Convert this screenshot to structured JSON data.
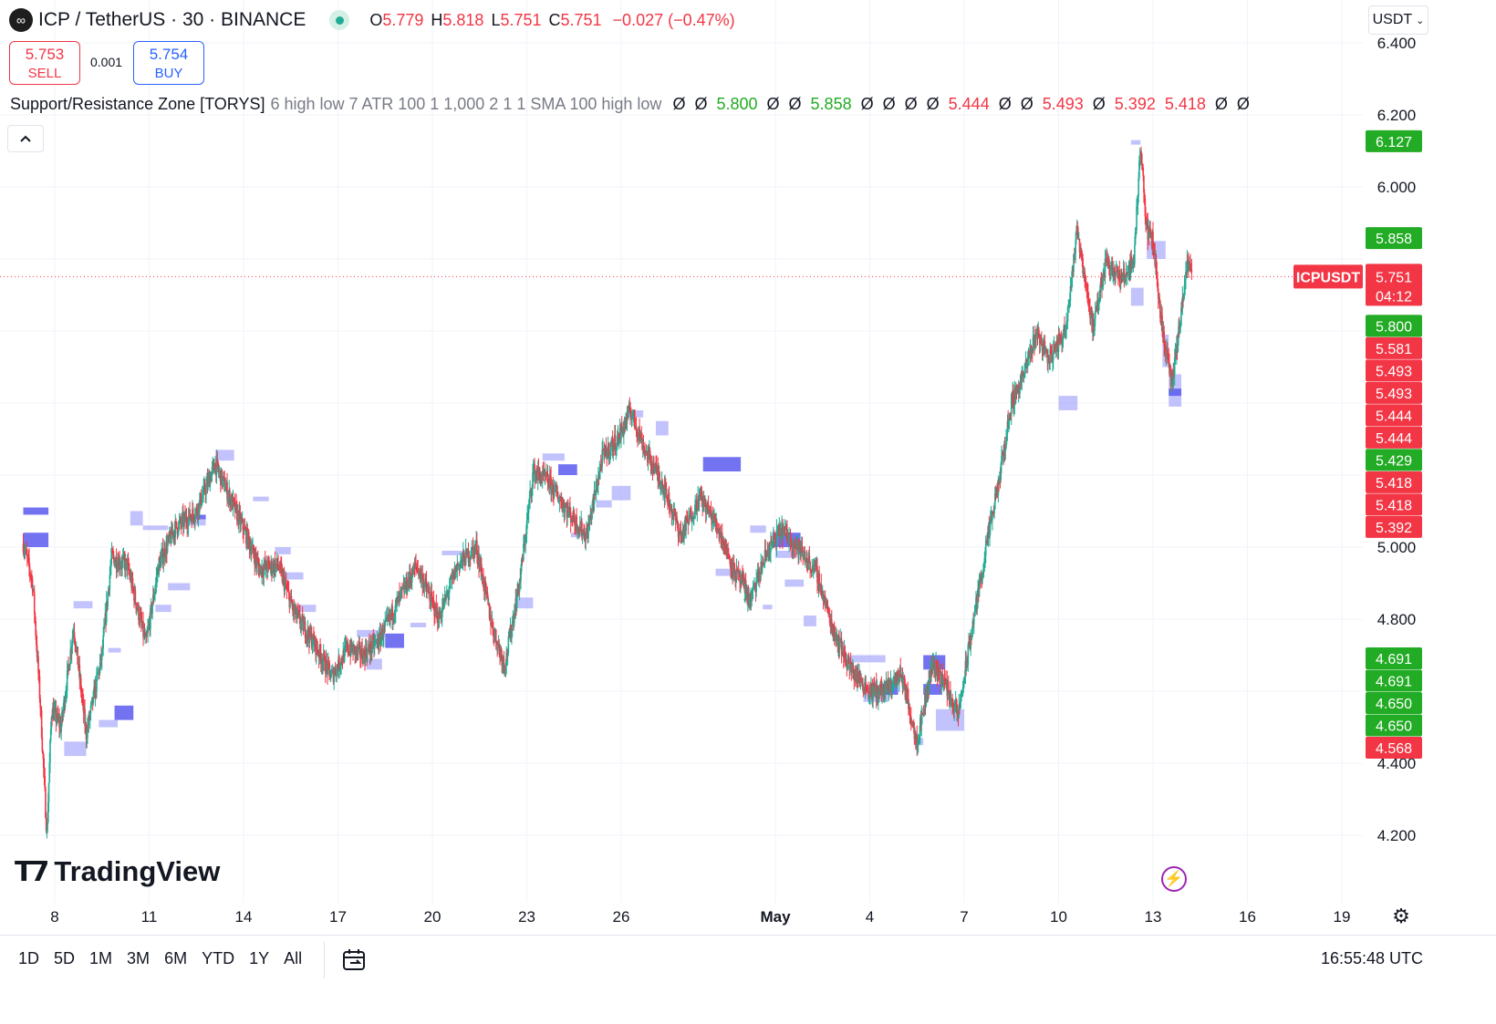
{
  "header": {
    "symbol_title": "ICP / TetherUS · 30 · BINANCE",
    "symbol_icon": "infinity-logo",
    "ohlc": {
      "o_label": "O",
      "o_value": "5.779",
      "h_label": "H",
      "h_value": "5.818",
      "l_label": "L",
      "l_value": "5.751",
      "c_label": "C",
      "c_value": "5.751",
      "change": "−0.027 (−0.47%)"
    }
  },
  "trade": {
    "sell_price": "5.753",
    "sell_label": "SELL",
    "spread": "0.001",
    "buy_price": "5.754",
    "buy_label": "BUY"
  },
  "indicator": {
    "name": "Support/Resistance Zone [TORYS]",
    "params": "6 high low 7 ATR 100 1 1,000 2 1 1 SMA 100 high low",
    "values": [
      {
        "text": "Ø",
        "color": "#131722"
      },
      {
        "text": "Ø",
        "color": "#131722"
      },
      {
        "text": "5.800",
        "color": "#22ab24"
      },
      {
        "text": "Ø",
        "color": "#131722"
      },
      {
        "text": "Ø",
        "color": "#131722"
      },
      {
        "text": "5.858",
        "color": "#22ab24"
      },
      {
        "text": "Ø",
        "color": "#131722"
      },
      {
        "text": "Ø",
        "color": "#131722"
      },
      {
        "text": "Ø",
        "color": "#131722"
      },
      {
        "text": "Ø",
        "color": "#131722"
      },
      {
        "text": "5.444",
        "color": "#f23645"
      },
      {
        "text": "Ø",
        "color": "#131722"
      },
      {
        "text": "Ø",
        "color": "#131722"
      },
      {
        "text": "5.493",
        "color": "#f23645"
      },
      {
        "text": "Ø",
        "color": "#131722"
      },
      {
        "text": "5.392",
        "color": "#f23645"
      },
      {
        "text": "5.418",
        "color": "#f23645"
      },
      {
        "text": "Ø",
        "color": "#131722"
      },
      {
        "text": "Ø",
        "color": "#131722"
      }
    ]
  },
  "currency": "USDT",
  "branding": "TradingView",
  "colors": {
    "up": "#22ab94",
    "down": "#f23645",
    "zone_light": "#b3b3fb",
    "zone_dark": "#5a5af0",
    "label_green": "#22ab24",
    "label_red": "#f23645"
  },
  "chart_data": {
    "type": "candlestick",
    "symbol_label": "ICPUSDT",
    "last_price": "5.751",
    "countdown": "04:12",
    "y_ticks": [
      "4.200",
      "4.400",
      "4.800",
      "5.000",
      "6.000",
      "6.200",
      "6.400"
    ],
    "x_ticks": [
      "8",
      "11",
      "14",
      "17",
      "20",
      "23",
      "26",
      "May",
      "4",
      "7",
      "10",
      "13",
      "16",
      "19"
    ],
    "axis_labels": [
      {
        "text": "6.127",
        "v": 6.127,
        "kind": "green"
      },
      {
        "text": "5.858",
        "v": 5.858,
        "kind": "green"
      },
      {
        "text": "5.800",
        "v": 5.8,
        "kind": "green"
      },
      {
        "text": "5.800",
        "v": 5.8,
        "kind": "green"
      },
      {
        "text": "5.581",
        "v": 5.581,
        "kind": "red"
      },
      {
        "text": "5.493",
        "v": 5.493,
        "kind": "red"
      },
      {
        "text": "5.493",
        "v": 5.493,
        "kind": "red"
      },
      {
        "text": "5.444",
        "v": 5.444,
        "kind": "red"
      },
      {
        "text": "5.444",
        "v": 5.444,
        "kind": "red"
      },
      {
        "text": "5.429",
        "v": 5.429,
        "kind": "green"
      },
      {
        "text": "5.418",
        "v": 5.418,
        "kind": "red"
      },
      {
        "text": "5.418",
        "v": 5.418,
        "kind": "red"
      },
      {
        "text": "5.392",
        "v": 5.392,
        "kind": "red"
      },
      {
        "text": "4.691",
        "v": 4.691,
        "kind": "green"
      },
      {
        "text": "4.691",
        "v": 4.691,
        "kind": "green"
      },
      {
        "text": "4.650",
        "v": 4.65,
        "kind": "green"
      },
      {
        "text": "4.650",
        "v": 4.65,
        "kind": "green"
      },
      {
        "text": "4.568",
        "v": 4.568,
        "kind": "red"
      }
    ],
    "path": [
      {
        "day": 7.0,
        "v": 5.01
      },
      {
        "day": 7.3,
        "v": 4.9
      },
      {
        "day": 7.55,
        "v": 4.55
      },
      {
        "day": 7.75,
        "v": 4.2
      },
      {
        "day": 7.9,
        "v": 4.55
      },
      {
        "day": 8.2,
        "v": 4.5
      },
      {
        "day": 8.6,
        "v": 4.78
      },
      {
        "day": 9.0,
        "v": 4.48
      },
      {
        "day": 9.5,
        "v": 4.7
      },
      {
        "day": 9.8,
        "v": 4.97
      },
      {
        "day": 10.3,
        "v": 4.95
      },
      {
        "day": 10.9,
        "v": 4.73
      },
      {
        "day": 11.3,
        "v": 4.95
      },
      {
        "day": 11.8,
        "v": 5.05
      },
      {
        "day": 12.5,
        "v": 5.1
      },
      {
        "day": 13.1,
        "v": 5.23
      },
      {
        "day": 13.6,
        "v": 5.13
      },
      {
        "day": 14.1,
        "v": 5.03
      },
      {
        "day": 14.5,
        "v": 4.94
      },
      {
        "day": 15.1,
        "v": 4.95
      },
      {
        "day": 15.6,
        "v": 4.82
      },
      {
        "day": 16.2,
        "v": 4.74
      },
      {
        "day": 16.8,
        "v": 4.64
      },
      {
        "day": 17.3,
        "v": 4.72
      },
      {
        "day": 17.8,
        "v": 4.7
      },
      {
        "day": 18.3,
        "v": 4.74
      },
      {
        "day": 18.8,
        "v": 4.83
      },
      {
        "day": 19.5,
        "v": 4.95
      },
      {
        "day": 20.2,
        "v": 4.8
      },
      {
        "day": 20.8,
        "v": 4.95
      },
      {
        "day": 21.4,
        "v": 5.0
      },
      {
        "day": 21.9,
        "v": 4.78
      },
      {
        "day": 22.3,
        "v": 4.67
      },
      {
        "day": 22.8,
        "v": 4.92
      },
      {
        "day": 23.2,
        "v": 5.21
      },
      {
        "day": 23.7,
        "v": 5.18
      },
      {
        "day": 24.3,
        "v": 5.1
      },
      {
        "day": 24.9,
        "v": 5.03
      },
      {
        "day": 25.4,
        "v": 5.25
      },
      {
        "day": 25.9,
        "v": 5.3
      },
      {
        "day": 26.3,
        "v": 5.38
      },
      {
        "day": 26.8,
        "v": 5.26
      },
      {
        "day": 27.3,
        "v": 5.18
      },
      {
        "day": 27.9,
        "v": 5.03
      },
      {
        "day": 28.5,
        "v": 5.14
      },
      {
        "day": 29.1,
        "v": 5.05
      },
      {
        "day": 29.6,
        "v": 4.93
      },
      {
        "day": 30.2,
        "v": 4.85
      },
      {
        "day": 30.7,
        "v": 4.98
      },
      {
        "day": 31.2,
        "v": 5.05
      },
      {
        "day": 31.7,
        "v": 5.0
      },
      {
        "day": 32.3,
        "v": 4.93
      },
      {
        "day": 32.8,
        "v": 4.78
      },
      {
        "day": 33.4,
        "v": 4.66
      },
      {
        "day": 34.0,
        "v": 4.6
      },
      {
        "day": 34.5,
        "v": 4.6
      },
      {
        "day": 35.0,
        "v": 4.65
      },
      {
        "day": 35.5,
        "v": 4.46
      },
      {
        "day": 36.0,
        "v": 4.68
      },
      {
        "day": 36.4,
        "v": 4.62
      },
      {
        "day": 36.8,
        "v": 4.53
      },
      {
        "day": 37.3,
        "v": 4.8
      },
      {
        "day": 37.7,
        "v": 5.0
      },
      {
        "day": 38.1,
        "v": 5.18
      },
      {
        "day": 38.5,
        "v": 5.4
      },
      {
        "day": 38.9,
        "v": 5.48
      },
      {
        "day": 39.3,
        "v": 5.6
      },
      {
        "day": 39.7,
        "v": 5.52
      },
      {
        "day": 40.2,
        "v": 5.6
      },
      {
        "day": 40.6,
        "v": 5.88
      },
      {
        "day": 41.1,
        "v": 5.6
      },
      {
        "day": 41.5,
        "v": 5.8
      },
      {
        "day": 42.0,
        "v": 5.74
      },
      {
        "day": 42.4,
        "v": 5.8
      },
      {
        "day": 42.6,
        "v": 6.12
      },
      {
        "day": 42.8,
        "v": 5.88
      },
      {
        "day": 43.0,
        "v": 5.85
      },
      {
        "day": 43.3,
        "v": 5.6
      },
      {
        "day": 43.6,
        "v": 5.45
      },
      {
        "day": 43.9,
        "v": 5.65
      },
      {
        "day": 44.1,
        "v": 5.79
      },
      {
        "day": 44.25,
        "v": 5.751
      }
    ],
    "zones": [
      {
        "d0": 7.0,
        "d1": 7.8,
        "v0": 5.09,
        "v1": 5.11,
        "dark": true
      },
      {
        "d0": 7.0,
        "d1": 7.8,
        "v0": 5.0,
        "v1": 5.04,
        "dark": true
      },
      {
        "d0": 8.3,
        "d1": 9.0,
        "v0": 4.42,
        "v1": 4.46,
        "dark": false
      },
      {
        "d0": 8.6,
        "d1": 9.2,
        "v0": 4.83,
        "v1": 4.85,
        "dark": false
      },
      {
        "d0": 9.4,
        "d1": 10.0,
        "v0": 4.5,
        "v1": 4.52,
        "dark": false
      },
      {
        "d0": 9.7,
        "d1": 10.1,
        "v0": 4.71,
        "v1": 4.72,
        "dark": false
      },
      {
        "d0": 9.9,
        "d1": 10.5,
        "v0": 4.52,
        "v1": 4.56,
        "dark": true
      },
      {
        "d0": 10.4,
        "d1": 10.8,
        "v0": 5.06,
        "v1": 5.1,
        "dark": false
      },
      {
        "d0": 10.8,
        "d1": 11.6,
        "v0": 5.05,
        "v1": 5.06,
        "dark": false
      },
      {
        "d0": 11.2,
        "d1": 11.7,
        "v0": 4.82,
        "v1": 4.84,
        "dark": false
      },
      {
        "d0": 11.6,
        "d1": 12.3,
        "v0": 4.88,
        "v1": 4.9,
        "dark": false
      },
      {
        "d0": 12.2,
        "d1": 12.8,
        "v0": 5.06,
        "v1": 5.08,
        "dark": false
      },
      {
        "d0": 12.3,
        "d1": 12.8,
        "v0": 5.08,
        "v1": 5.09,
        "dark": true
      },
      {
        "d0": 13.1,
        "d1": 13.7,
        "v0": 5.24,
        "v1": 5.27,
        "dark": false
      },
      {
        "d0": 14.3,
        "d1": 14.8,
        "v0": 5.13,
        "v1": 5.14,
        "dark": false
      },
      {
        "d0": 15.0,
        "d1": 15.5,
        "v0": 4.98,
        "v1": 5.0,
        "dark": false
      },
      {
        "d0": 15.3,
        "d1": 15.9,
        "v0": 4.91,
        "v1": 4.93,
        "dark": false
      },
      {
        "d0": 15.7,
        "d1": 16.3,
        "v0": 4.82,
        "v1": 4.84,
        "dark": false
      },
      {
        "d0": 17.6,
        "d1": 18.3,
        "v0": 4.75,
        "v1": 4.77,
        "dark": false
      },
      {
        "d0": 17.9,
        "d1": 18.4,
        "v0": 4.66,
        "v1": 4.69,
        "dark": false
      },
      {
        "d0": 18.5,
        "d1": 19.1,
        "v0": 4.72,
        "v1": 4.76,
        "dark": true
      },
      {
        "d0": 19.3,
        "d1": 19.8,
        "v0": 4.78,
        "v1": 4.79,
        "dark": false
      },
      {
        "d0": 20.3,
        "d1": 21.1,
        "v0": 4.98,
        "v1": 4.99,
        "dark": false
      },
      {
        "d0": 22.7,
        "d1": 23.2,
        "v0": 4.83,
        "v1": 4.86,
        "dark": false
      },
      {
        "d0": 23.5,
        "d1": 24.2,
        "v0": 5.24,
        "v1": 5.26,
        "dark": false
      },
      {
        "d0": 24.0,
        "d1": 24.6,
        "v0": 5.2,
        "v1": 5.23,
        "dark": true
      },
      {
        "d0": 24.4,
        "d1": 24.9,
        "v0": 5.03,
        "v1": 5.04,
        "dark": false
      },
      {
        "d0": 25.2,
        "d1": 25.7,
        "v0": 5.11,
        "v1": 5.13,
        "dark": false
      },
      {
        "d0": 25.7,
        "d1": 26.3,
        "v0": 5.13,
        "v1": 5.17,
        "dark": false
      },
      {
        "d0": 26.2,
        "d1": 26.7,
        "v0": 5.36,
        "v1": 5.38,
        "dark": false
      },
      {
        "d0": 27.1,
        "d1": 27.5,
        "v0": 5.31,
        "v1": 5.35,
        "dark": false
      },
      {
        "d0": 28.6,
        "d1": 29.8,
        "v0": 5.21,
        "v1": 5.25,
        "dark": true
      },
      {
        "d0": 29.0,
        "d1": 29.6,
        "v0": 4.92,
        "v1": 4.94,
        "dark": false
      },
      {
        "d0": 30.2,
        "d1": 30.7,
        "v0": 5.04,
        "v1": 5.06,
        "dark": false
      },
      {
        "d0": 30.6,
        "d1": 30.9,
        "v0": 4.83,
        "v1": 4.84,
        "dark": false
      },
      {
        "d0": 30.9,
        "d1": 31.8,
        "v0": 5.0,
        "v1": 5.04,
        "dark": true
      },
      {
        "d0": 31.3,
        "d1": 31.9,
        "v0": 4.89,
        "v1": 4.91,
        "dark": false
      },
      {
        "d0": 31.0,
        "d1": 31.7,
        "v0": 4.97,
        "v1": 4.99,
        "dark": false
      },
      {
        "d0": 31.9,
        "d1": 32.3,
        "v0": 4.78,
        "v1": 4.81,
        "dark": false
      },
      {
        "d0": 33.3,
        "d1": 34.5,
        "v0": 4.68,
        "v1": 4.7,
        "dark": false
      },
      {
        "d0": 33.8,
        "d1": 34.6,
        "v0": 4.57,
        "v1": 4.6,
        "dark": false
      },
      {
        "d0": 34.3,
        "d1": 34.9,
        "v0": 4.59,
        "v1": 4.62,
        "dark": true
      },
      {
        "d0": 35.4,
        "d1": 35.7,
        "v0": 4.45,
        "v1": 4.47,
        "dark": false
      },
      {
        "d0": 35.7,
        "d1": 36.4,
        "v0": 4.66,
        "v1": 4.7,
        "dark": true
      },
      {
        "d0": 35.7,
        "d1": 36.3,
        "v0": 4.59,
        "v1": 4.62,
        "dark": true
      },
      {
        "d0": 36.1,
        "d1": 37.0,
        "v0": 4.49,
        "v1": 4.55,
        "dark": false
      },
      {
        "d0": 40.0,
        "d1": 40.6,
        "v0": 5.38,
        "v1": 5.42,
        "dark": false
      },
      {
        "d0": 42.3,
        "d1": 42.6,
        "v0": 6.125,
        "v1": 6.13,
        "dark": false
      },
      {
        "d0": 42.3,
        "d1": 42.7,
        "v0": 5.67,
        "v1": 5.72,
        "dark": false
      },
      {
        "d0": 42.8,
        "d1": 43.4,
        "v0": 5.8,
        "v1": 5.85,
        "dark": false
      },
      {
        "d0": 43.3,
        "d1": 43.5,
        "v0": 5.5,
        "v1": 5.59,
        "dark": false
      },
      {
        "d0": 43.5,
        "d1": 43.9,
        "v0": 5.39,
        "v1": 5.48,
        "dark": false
      },
      {
        "d0": 43.5,
        "d1": 43.9,
        "v0": 5.42,
        "v1": 5.44,
        "dark": true
      }
    ]
  },
  "bottom_bar": {
    "ranges": [
      "1D",
      "5D",
      "1M",
      "3M",
      "6M",
      "YTD",
      "1Y",
      "All"
    ],
    "clock": "16:55:48 UTC"
  }
}
